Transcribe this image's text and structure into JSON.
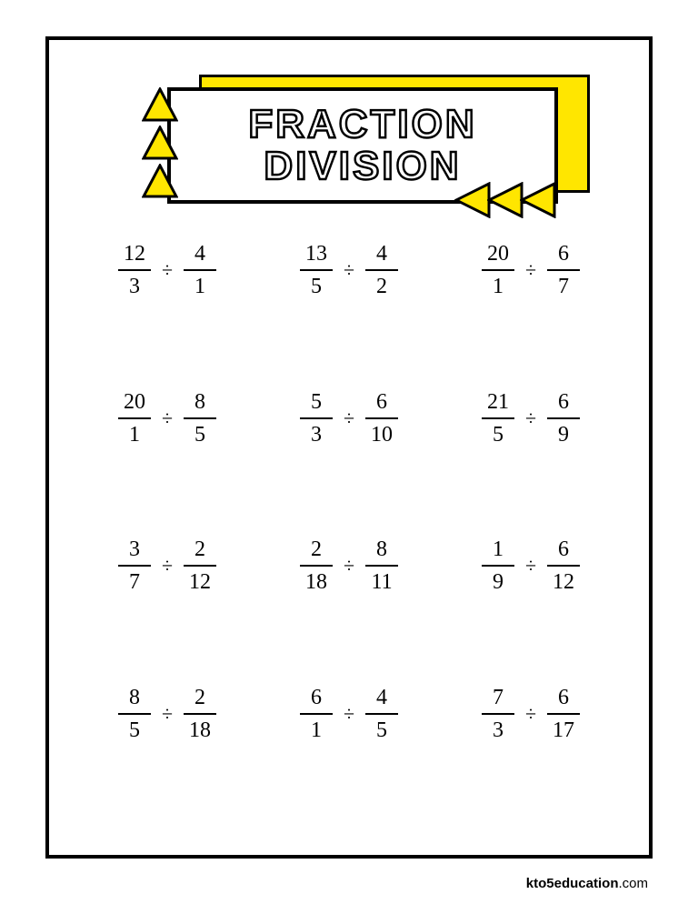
{
  "title": {
    "line1": "FRACTION",
    "line2": "DIVISION"
  },
  "colors": {
    "accent": "#ffe600",
    "border": "#000000",
    "background": "#ffffff",
    "text": "#000000"
  },
  "operator": "÷",
  "problems": [
    {
      "a": {
        "n": "12",
        "d": "3"
      },
      "b": {
        "n": "4",
        "d": "1"
      }
    },
    {
      "a": {
        "n": "13",
        "d": "5"
      },
      "b": {
        "n": "4",
        "d": "2"
      }
    },
    {
      "a": {
        "n": "20",
        "d": "1"
      },
      "b": {
        "n": "6",
        "d": "7"
      }
    },
    {
      "a": {
        "n": "20",
        "d": "1"
      },
      "b": {
        "n": "8",
        "d": "5"
      }
    },
    {
      "a": {
        "n": "5",
        "d": "3"
      },
      "b": {
        "n": "6",
        "d": "10"
      }
    },
    {
      "a": {
        "n": "21",
        "d": "5"
      },
      "b": {
        "n": "6",
        "d": "9"
      }
    },
    {
      "a": {
        "n": "3",
        "d": "7"
      },
      "b": {
        "n": "2",
        "d": "12"
      }
    },
    {
      "a": {
        "n": "2",
        "d": "18"
      },
      "b": {
        "n": "8",
        "d": "11"
      }
    },
    {
      "a": {
        "n": "1",
        "d": "9"
      },
      "b": {
        "n": "6",
        "d": "12"
      }
    },
    {
      "a": {
        "n": "8",
        "d": "5"
      },
      "b": {
        "n": "2",
        "d": "18"
      }
    },
    {
      "a": {
        "n": "6",
        "d": "1"
      },
      "b": {
        "n": "4",
        "d": "5"
      }
    },
    {
      "a": {
        "n": "7",
        "d": "3"
      },
      "b": {
        "n": "6",
        "d": "17"
      }
    }
  ],
  "footer": {
    "brand": "kto5education",
    "suffix": ".com"
  },
  "layout": {
    "grid_cols": 3,
    "grid_rows": 4,
    "fraction_fontsize": 24,
    "title_fontsize": 44
  }
}
